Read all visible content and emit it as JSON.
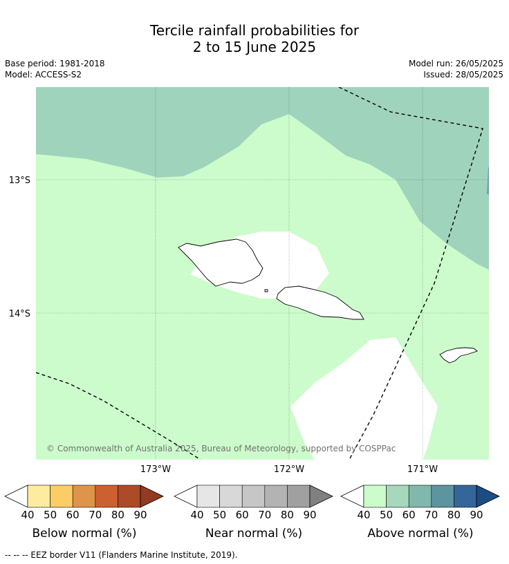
{
  "title_line1": "Tercile rainfall probabilities for",
  "title_line2": "2 to 15 June 2025",
  "meta": {
    "base_period": "Base period: 1981-2018",
    "model": "Model: ACCESS-S2",
    "model_run": "Model run: 26/05/2025",
    "issued": "Issued: 28/05/2025"
  },
  "map": {
    "lat_labels": [
      "13°S",
      "14°S"
    ],
    "lon_labels": [
      "173°W",
      "172°W",
      "171°W"
    ],
    "copyright": "© Commonwealth of Australia 2025, Bureau of Meteorology, supported by COSPPac"
  },
  "colorbars": [
    {
      "label": "Below normal (%)",
      "ticks": [
        "40",
        "50",
        "60",
        "70",
        "80",
        "90"
      ],
      "colors": [
        "#fdeba0",
        "#fccc66",
        "#e0944a",
        "#cc6030",
        "#ad4a28",
        "#933a20"
      ]
    },
    {
      "label": "Near normal (%)",
      "ticks": [
        "40",
        "50",
        "60",
        "70",
        "80",
        "90"
      ],
      "colors": [
        "#e6e6e6",
        "#d8d8d8",
        "#c6c6c6",
        "#b3b3b3",
        "#a0a0a0",
        "#808080"
      ]
    },
    {
      "label": "Above normal (%)",
      "ticks": [
        "40",
        "50",
        "60",
        "70",
        "80",
        "90"
      ],
      "colors": [
        "#ccfccc",
        "#a6d8bc",
        "#80b8ae",
        "#5c94a0",
        "#34669a",
        "#1c4c84"
      ]
    }
  ],
  "footnote": "-- -- -- EEZ border V11 (Flanders Marine Institute, 2019).",
  "colors": {
    "above_40_50": "#ccfccc",
    "above_50_60": "#a0d3bc"
  }
}
